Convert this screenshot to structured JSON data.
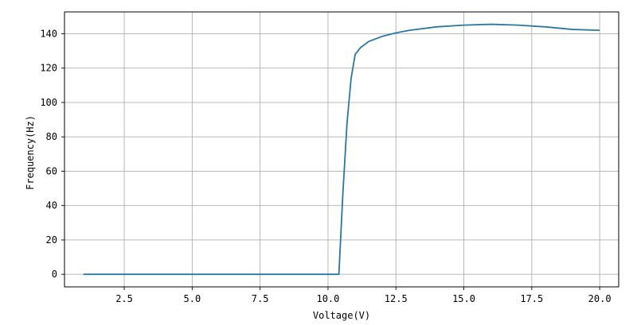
{
  "chart_data": {
    "type": "line",
    "title": "",
    "xlabel": "Voltage(V)",
    "ylabel": "Frequency(Hz)",
    "xlim": [
      0.3,
      20.7
    ],
    "ylim": [
      -7.3,
      152.7
    ],
    "grid": true,
    "legend": "none",
    "xticks": [
      2.5,
      5.0,
      7.5,
      10.0,
      12.5,
      15.0,
      17.5,
      20.0
    ],
    "xtick_labels": [
      "2.5",
      "5.0",
      "7.5",
      "10.0",
      "12.5",
      "15.0",
      "17.5",
      "20.0"
    ],
    "yticks": [
      0,
      20,
      40,
      60,
      80,
      100,
      120,
      140
    ],
    "ytick_labels": [
      "0",
      "20",
      "40",
      "60",
      "80",
      "100",
      "120",
      "140"
    ],
    "series": [
      {
        "color": "#2a77a0",
        "x": [
          1.0,
          2.0,
          3.0,
          4.0,
          5.0,
          6.0,
          7.0,
          8.0,
          9.0,
          10.0,
          10.4,
          10.55,
          10.7,
          10.85,
          11.0,
          11.2,
          11.5,
          12.0,
          12.5,
          13.0,
          14.0,
          15.0,
          16.0,
          17.0,
          18.0,
          19.0,
          20.0
        ],
        "y": [
          0,
          0,
          0,
          0,
          0,
          0,
          0,
          0,
          0,
          0,
          0,
          48,
          88,
          114,
          128,
          132,
          135.5,
          138.5,
          140.5,
          142,
          144,
          145,
          145.5,
          145,
          144,
          142.5,
          142
        ]
      }
    ]
  }
}
